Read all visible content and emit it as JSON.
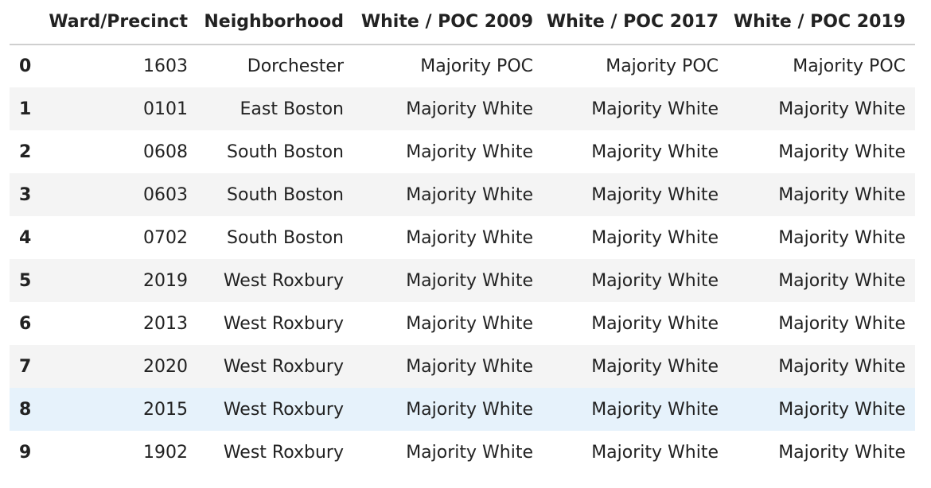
{
  "table": {
    "columns": [
      "",
      "Ward/Precinct",
      "Neighborhood",
      "White / POC 2009",
      "White / POC 2017",
      "White / POC 2019"
    ],
    "rows": [
      {
        "index": "0",
        "ward": "1603",
        "neighborhood": "Dorchester",
        "poc2009": "Majority POC",
        "poc2017": "Majority POC",
        "poc2019": "Majority POC"
      },
      {
        "index": "1",
        "ward": "0101",
        "neighborhood": "East Boston",
        "poc2009": "Majority White",
        "poc2017": "Majority White",
        "poc2019": "Majority White"
      },
      {
        "index": "2",
        "ward": "0608",
        "neighborhood": "South Boston",
        "poc2009": "Majority White",
        "poc2017": "Majority White",
        "poc2019": "Majority White"
      },
      {
        "index": "3",
        "ward": "0603",
        "neighborhood": "South Boston",
        "poc2009": "Majority White",
        "poc2017": "Majority White",
        "poc2019": "Majority White"
      },
      {
        "index": "4",
        "ward": "0702",
        "neighborhood": "South Boston",
        "poc2009": "Majority White",
        "poc2017": "Majority White",
        "poc2019": "Majority White"
      },
      {
        "index": "5",
        "ward": "2019",
        "neighborhood": "West Roxbury",
        "poc2009": "Majority White",
        "poc2017": "Majority White",
        "poc2019": "Majority White"
      },
      {
        "index": "6",
        "ward": "2013",
        "neighborhood": "West Roxbury",
        "poc2009": "Majority White",
        "poc2017": "Majority White",
        "poc2019": "Majority White"
      },
      {
        "index": "7",
        "ward": "2020",
        "neighborhood": "West Roxbury",
        "poc2009": "Majority White",
        "poc2017": "Majority White",
        "poc2019": "Majority White"
      },
      {
        "index": "8",
        "ward": "2015",
        "neighborhood": "West Roxbury",
        "poc2009": "Majority White",
        "poc2017": "Majority White",
        "poc2019": "Majority White"
      },
      {
        "index": "9",
        "ward": "1902",
        "neighborhood": "West Roxbury",
        "poc2009": "Majority White",
        "poc2017": "Majority White",
        "poc2019": "Majority White"
      }
    ],
    "hovered_row": "8",
    "colors": {
      "stripe": "#f4f4f4",
      "hover": "#e6f2fb",
      "header_rule": "#cfcfcf"
    }
  }
}
